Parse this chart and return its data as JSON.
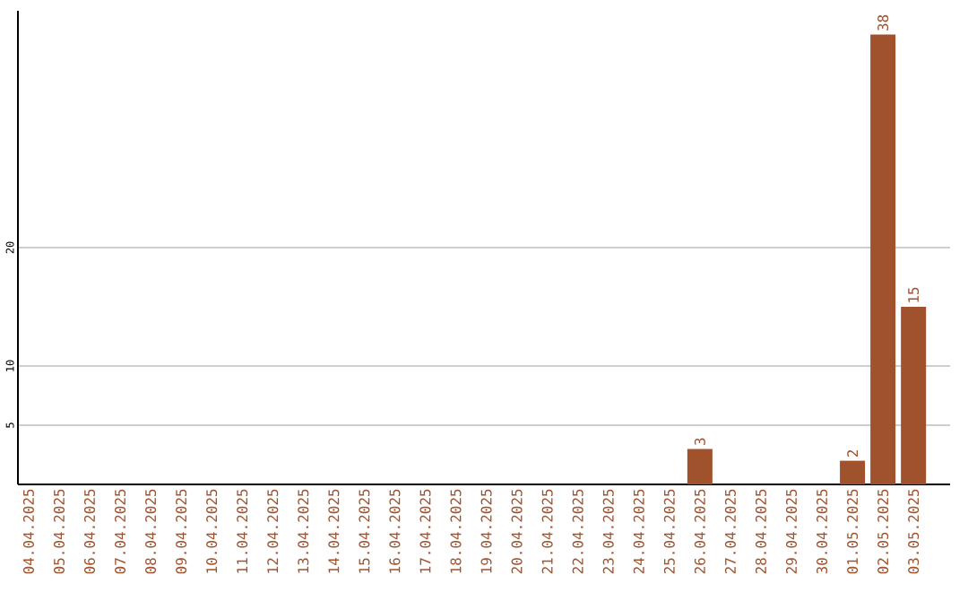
{
  "chart_data": {
    "type": "bar",
    "categories": [
      "04.04.2025",
      "05.04.2025",
      "06.04.2025",
      "07.04.2025",
      "08.04.2025",
      "09.04.2025",
      "10.04.2025",
      "11.04.2025",
      "12.04.2025",
      "13.04.2025",
      "14.04.2025",
      "15.04.2025",
      "16.04.2025",
      "17.04.2025",
      "18.04.2025",
      "19.04.2025",
      "20.04.2025",
      "21.04.2025",
      "22.04.2025",
      "23.04.2025",
      "24.04.2025",
      "25.04.2025",
      "26.04.2025",
      "27.04.2025",
      "28.04.2025",
      "29.04.2025",
      "30.04.2025",
      "01.05.2025",
      "02.05.2025",
      "03.05.2025"
    ],
    "values": [
      0,
      0,
      0,
      0,
      0,
      0,
      0,
      0,
      0,
      0,
      0,
      0,
      0,
      0,
      0,
      0,
      0,
      0,
      0,
      0,
      0,
      0,
      3,
      0,
      0,
      0,
      0,
      2,
      38,
      15
    ],
    "value_labels": [
      null,
      null,
      null,
      null,
      null,
      null,
      null,
      null,
      null,
      null,
      null,
      null,
      null,
      null,
      null,
      null,
      null,
      null,
      null,
      null,
      null,
      null,
      "3",
      null,
      null,
      null,
      null,
      "2",
      "38",
      "15"
    ],
    "color": "#a0522d",
    "ylim": [
      0,
      40
    ],
    "yticks": [
      5,
      10,
      20
    ],
    "grid": "y"
  }
}
